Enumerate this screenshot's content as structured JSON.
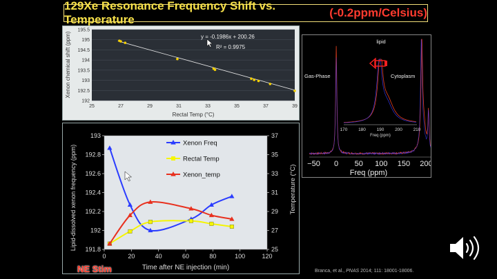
{
  "title": {
    "main": "129Xe Resonance Frequency Shift vs. Temperature",
    "accent": "(-0.2ppm/Celsius)"
  },
  "chart_data": [
    {
      "type": "scatter",
      "title": "",
      "xlabel": "Rectal Temp (°C)",
      "ylabel": "Xenon chemical shift (ppm)",
      "xlim": [
        25,
        39
      ],
      "ylim": [
        192,
        195.5
      ],
      "xticks": [
        "25",
        "27",
        "29",
        "31",
        "33",
        "35",
        "37",
        "39"
      ],
      "yticks": [
        "192",
        "192.5",
        "193",
        "193.5",
        "194",
        "194.5",
        "195",
        "195.5"
      ],
      "x": [
        26.9,
        27.0,
        27.3,
        30.9,
        33.4,
        33.5,
        36.0,
        36.2,
        36.5,
        37.3,
        39.0
      ],
      "y": [
        194.95,
        194.92,
        194.85,
        194.05,
        193.58,
        193.52,
        193.08,
        193.02,
        192.97,
        192.82,
        192.48
      ],
      "fit": {
        "slope": -0.1986,
        "intercept": 200.26
      },
      "equation": "y = -0.1986x + 200.26",
      "r2": "R² = 0.9975",
      "point_color": "#f5d000",
      "line_color": "#ffffff"
    },
    {
      "type": "line",
      "title": "",
      "xlabel": "Time  after NE injection (min)",
      "ylabel": "Lipid-dissolved xenon frequency (ppm)",
      "y2label": "Temperature (°C)",
      "xlim": [
        0,
        120
      ],
      "ylim": [
        191.8,
        193
      ],
      "y2lim": [
        25,
        37
      ],
      "xticks": [
        "0",
        "20",
        "40",
        "60",
        "80",
        "100",
        "120"
      ],
      "yticks": [
        "191.8",
        "192",
        "192.2",
        "192.4",
        "192.6",
        "192.8",
        "193"
      ],
      "y2ticks": [
        "25",
        "27",
        "29",
        "31",
        "33",
        "35",
        "37"
      ],
      "series": [
        {
          "name": "Xenon Freq",
          "axis": "left",
          "color": "#2a3cff",
          "marker": "triangle",
          "x": [
            4,
            19,
            34,
            64,
            79,
            94
          ],
          "y": [
            192.87,
            192.27,
            192.0,
            192.12,
            192.27,
            192.36
          ]
        },
        {
          "name": "Rectal Temp",
          "axis": "right",
          "color": "#f5f500",
          "marker": "square",
          "x": [
            4,
            19,
            34,
            64,
            79,
            94
          ],
          "y": [
            25.6,
            26.9,
            27.9,
            28.0,
            27.7,
            27.4
          ]
        },
        {
          "name": "Xenon_temp",
          "axis": "right",
          "color": "#e8301e",
          "marker": "triangle",
          "x": [
            4,
            19,
            34,
            64,
            79,
            94
          ],
          "y": [
            25.6,
            28.6,
            30.0,
            29.3,
            28.6,
            28.2
          ]
        }
      ]
    },
    {
      "type": "line",
      "title": "",
      "xlabel": "Freq (ppm)",
      "xticks": [
        "−50",
        "0",
        "50",
        "100",
        "150",
        "200"
      ],
      "inset_xlabel": "Freq (ppm)",
      "inset_xticks": [
        "170",
        "180",
        "190",
        "200",
        "210"
      ],
      "annotations": [
        "lipid",
        "Gas-Phase",
        "Cytoplasm"
      ],
      "peaks_ppm": {
        "gas_phase": 0,
        "lipid": 190,
        "cytoplasm": 194
      },
      "colors": {
        "before": "#e8401e",
        "after": "#3a3cff",
        "arrow": "#ff2020"
      }
    }
  ],
  "citation": {
    "authors": "Branca, et al., ",
    "journal": "PNAS",
    "rest": " 2014; 111: 18001-18006."
  },
  "overlay_label": "NE Stim",
  "icons": {
    "cursor": "cursor-arrow-icon",
    "speaker": "speaker-icon"
  }
}
